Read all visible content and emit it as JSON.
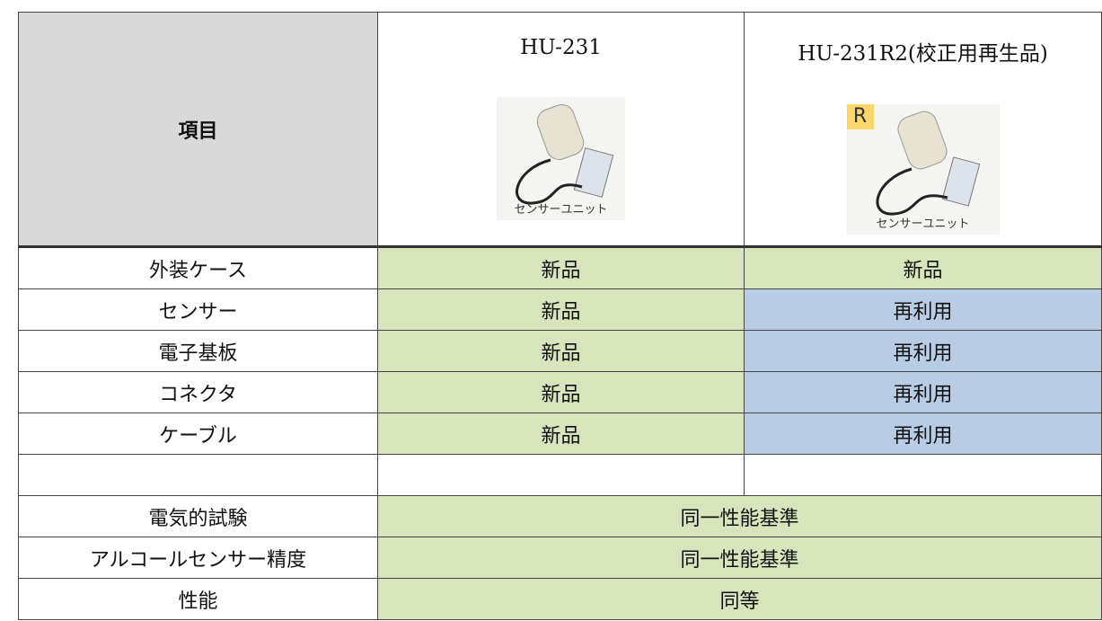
{
  "header": {
    "item": "項目",
    "product1": "HU-231",
    "product2": "HU-231R2(校正用再生品)",
    "image1_caption": "センサーユニット",
    "image2_caption": "センサーユニット",
    "image2_badge": "R"
  },
  "parts_rows": [
    [
      "外装ケース",
      "新品",
      "新品"
    ],
    [
      "センサー",
      "新品",
      "再利用"
    ],
    [
      "電子基板",
      "新品",
      "再利用"
    ],
    [
      "コネクタ",
      "新品",
      "再利用"
    ],
    [
      "ケーブル",
      "新品",
      "再利用"
    ]
  ],
  "test_rows": [
    [
      "電気的試験",
      "同一性能基準"
    ],
    [
      "アルコールセンサー精度",
      "同一性能基準"
    ],
    [
      "性能",
      "同等"
    ]
  ]
}
